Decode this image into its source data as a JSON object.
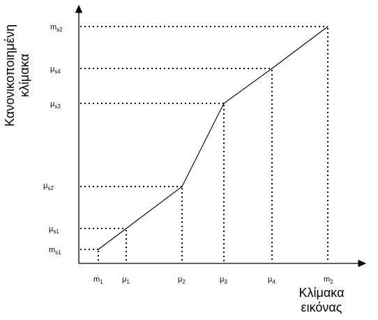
{
  "y_axis_title": [
    "Κανονικοποιημένη",
    "κλίμακα"
  ],
  "x_axis_title": [
    "Κλίμακα",
    "εικόνας"
  ],
  "x_ticks": [
    {
      "base": "m",
      "sub": "1"
    },
    {
      "base": "μ",
      "sub": "1"
    },
    {
      "base": "μ",
      "sub": "2"
    },
    {
      "base": "μ",
      "sub": "3"
    },
    {
      "base": "μ",
      "sub": "4"
    },
    {
      "base": "m",
      "sub": "2"
    }
  ],
  "y_ticks": [
    {
      "base": "m",
      "sub": "s1"
    },
    {
      "base": "μ",
      "sub": "s1"
    },
    {
      "base": "μ",
      "sub": "s2"
    },
    {
      "base": "μ",
      "sub": "s3"
    },
    {
      "base": "μ",
      "sub": "s4"
    },
    {
      "base": "m",
      "sub": "s2"
    }
  ]
}
